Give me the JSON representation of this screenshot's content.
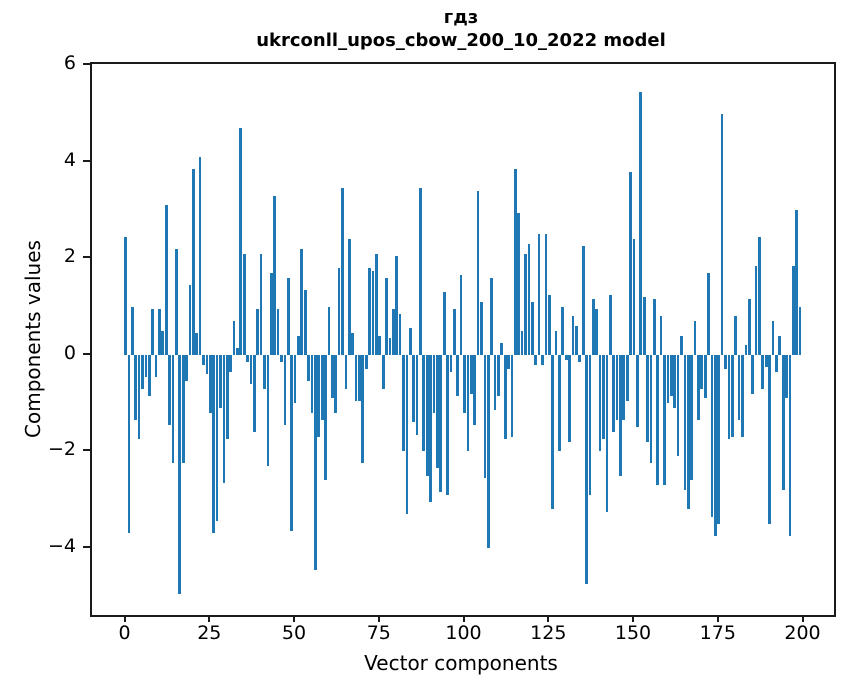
{
  "title": {
    "line1": "гдз",
    "line2": "ukrconll_upos_cbow_200_10_2022 model"
  },
  "chart_data": {
    "type": "bar",
    "title": "гдз\nukrconll_upos_cbow_200_10_2022 model",
    "xlabel": "Vector components",
    "ylabel": "Components values",
    "x_ticks": [
      0,
      25,
      50,
      75,
      100,
      125,
      150,
      175,
      200
    ],
    "y_ticks": [
      6,
      4,
      2,
      0,
      -2,
      -4
    ],
    "xlim": [
      -9.9,
      209.0
    ],
    "ylim": [
      -5.39,
      6.03
    ],
    "bar_color": "#1f77b4",
    "bar_width_data_units": 0.8,
    "grid": false,
    "legend": null,
    "n_bars": 200,
    "categories_note": "x = vector component index 0..199",
    "values": [
      2.45,
      -3.7,
      1.0,
      -1.35,
      -1.75,
      -0.7,
      -0.45,
      -0.85,
      0.95,
      -0.45,
      0.95,
      0.5,
      3.1,
      -1.45,
      -2.25,
      2.2,
      -4.95,
      -2.25,
      -0.55,
      1.45,
      3.85,
      0.45,
      4.1,
      -0.2,
      -0.4,
      -1.2,
      -3.7,
      -3.45,
      -1.1,
      -2.65,
      -1.75,
      -0.35,
      0.7,
      0.15,
      4.7,
      2.1,
      -0.15,
      -0.6,
      -1.6,
      0.95,
      2.1,
      -0.7,
      -2.3,
      1.7,
      3.3,
      0.95,
      -0.15,
      -1.45,
      1.6,
      -3.65,
      -1.0,
      0.4,
      2.2,
      1.35,
      -0.55,
      -1.2,
      -4.45,
      -1.7,
      -1.35,
      -2.6,
      1.0,
      -0.9,
      -1.2,
      1.8,
      3.45,
      -0.7,
      2.4,
      0.45,
      -0.95,
      -0.95,
      -2.25,
      -0.3,
      1.8,
      1.75,
      2.1,
      0.4,
      -0.7,
      1.6,
      0.35,
      0.95,
      2.05,
      0.85,
      -2.0,
      -3.3,
      0.55,
      -1.4,
      -1.65,
      3.45,
      -2.0,
      -2.5,
      -3.05,
      -1.2,
      -2.35,
      -2.85,
      1.3,
      -2.9,
      -0.35,
      0.95,
      -0.85,
      1.65,
      -1.2,
      -2.0,
      -0.8,
      -1.45,
      3.4,
      1.1,
      -2.55,
      -4.0,
      1.6,
      -1.15,
      -0.85,
      0.25,
      -1.75,
      -0.3,
      -1.7,
      3.85,
      2.95,
      0.5,
      2.1,
      2.3,
      1.1,
      -0.2,
      2.5,
      -0.2,
      2.5,
      1.25,
      -3.2,
      0.5,
      -2.0,
      1.0,
      -0.1,
      -1.8,
      0.8,
      0.6,
      -0.15,
      2.25,
      -4.75,
      -2.9,
      1.15,
      0.95,
      -2.0,
      -1.75,
      -3.25,
      1.25,
      -1.6,
      -1.35,
      -2.5,
      -1.35,
      -0.95,
      3.8,
      2.4,
      -1.5,
      5.45,
      1.2,
      -1.8,
      -2.25,
      1.15,
      -2.7,
      0.8,
      -2.7,
      -1.0,
      -0.85,
      -1.1,
      -2.1,
      0.4,
      -2.8,
      -3.2,
      -2.6,
      0.7,
      -1.35,
      -0.7,
      -0.9,
      1.7,
      -3.35,
      -3.75,
      -3.5,
      5.0,
      -0.3,
      -1.75,
      -1.7,
      0.8,
      -1.35,
      -1.7,
      0.2,
      1.15,
      -0.8,
      1.85,
      2.45,
      -0.7,
      -0.25,
      -3.5,
      0.7,
      -0.35,
      0.4,
      -2.8,
      -0.9,
      -3.75,
      1.85,
      3.0,
      1.0
    ]
  }
}
